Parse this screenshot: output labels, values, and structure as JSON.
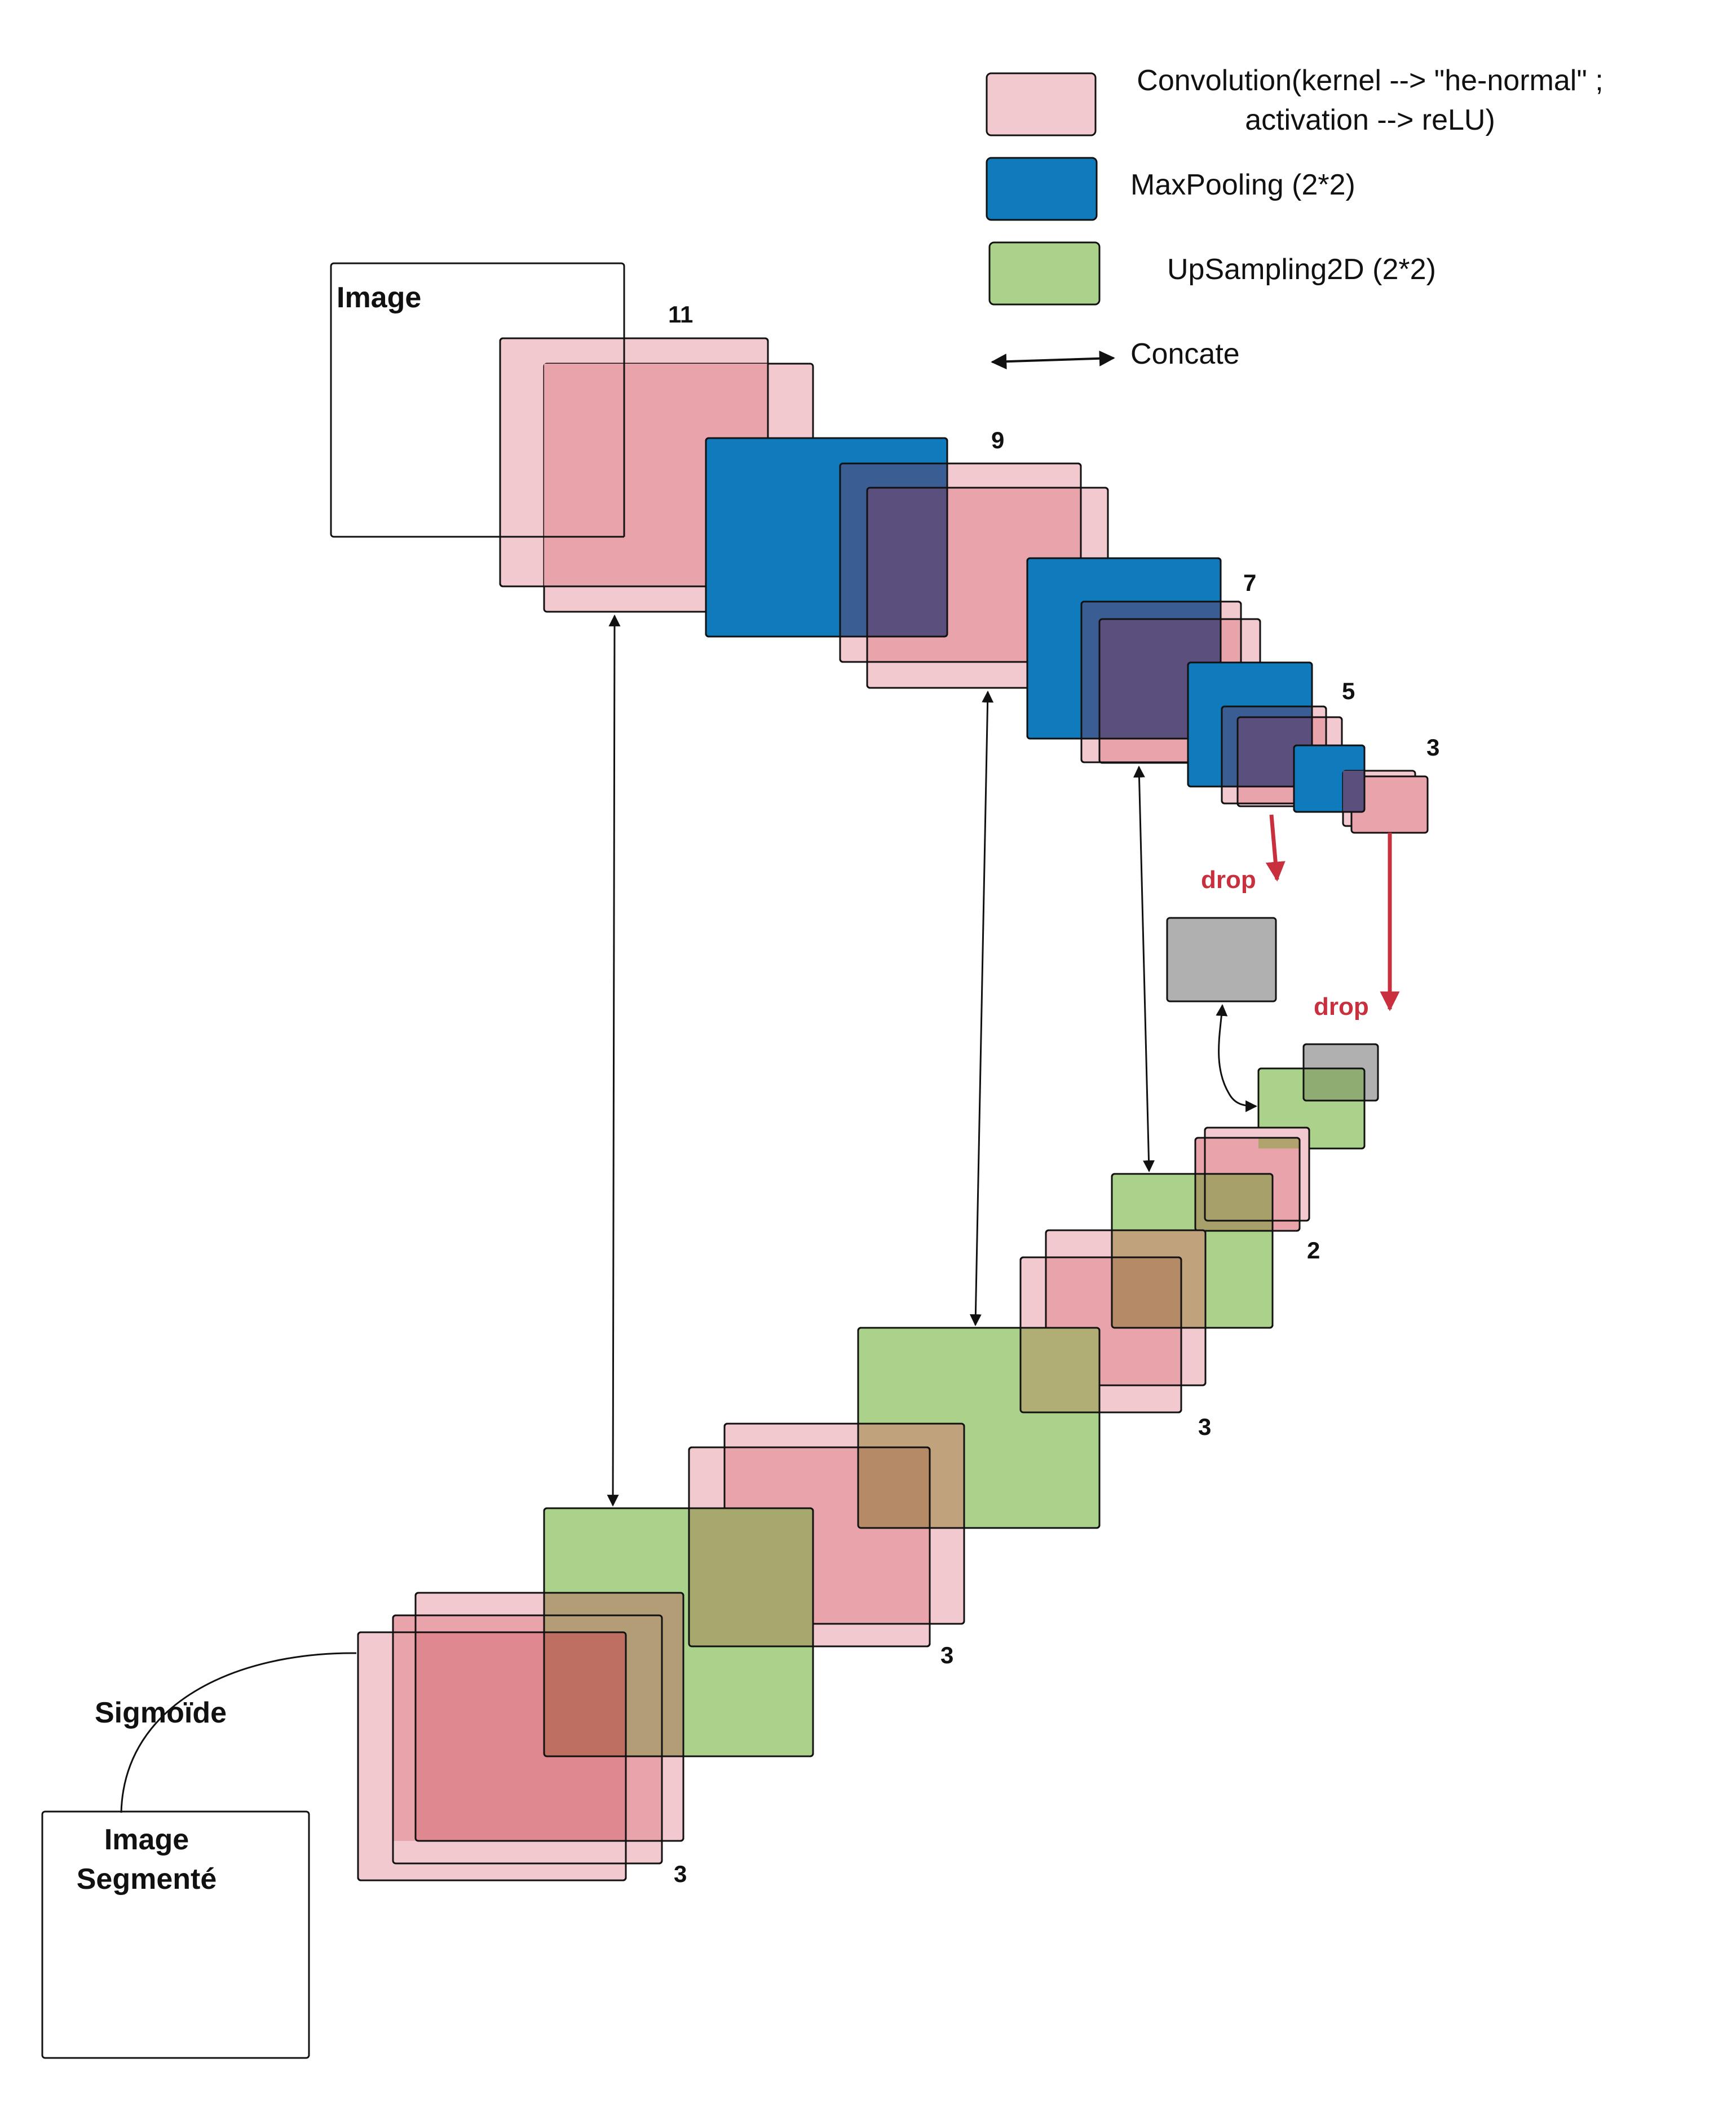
{
  "legend": {
    "convolution_line1": "Convolution(kernel --> \"he-normal\" ;",
    "convolution_line2": "activation --> reLU)",
    "maxpooling": "MaxPooling (2*2)",
    "upsampling": "UpSampling2D (2*2)",
    "concate": "Concate"
  },
  "labels": {
    "input_image": "Image",
    "output_line1": "Image",
    "output_line2": "Segmenté",
    "sigmoid": "Sigmoïde",
    "drop1": "drop",
    "drop2": "drop"
  },
  "block_numbers": {
    "enc1": "11",
    "enc2": "9",
    "enc3": "7",
    "enc4": "5",
    "enc5": "3",
    "dec1": "2",
    "dec2": "3",
    "dec3": "3",
    "dec4": "3"
  },
  "colors": {
    "conv_fill": "#f2c9cf",
    "conv_overlap": "#e8a3ab",
    "maxpool_fill": "#0f7bbd",
    "upsample_fill": "#abd28b",
    "dropout_fill": "#b0b0b0",
    "drop_arrow": "#c8303e",
    "stroke": "#111111"
  }
}
